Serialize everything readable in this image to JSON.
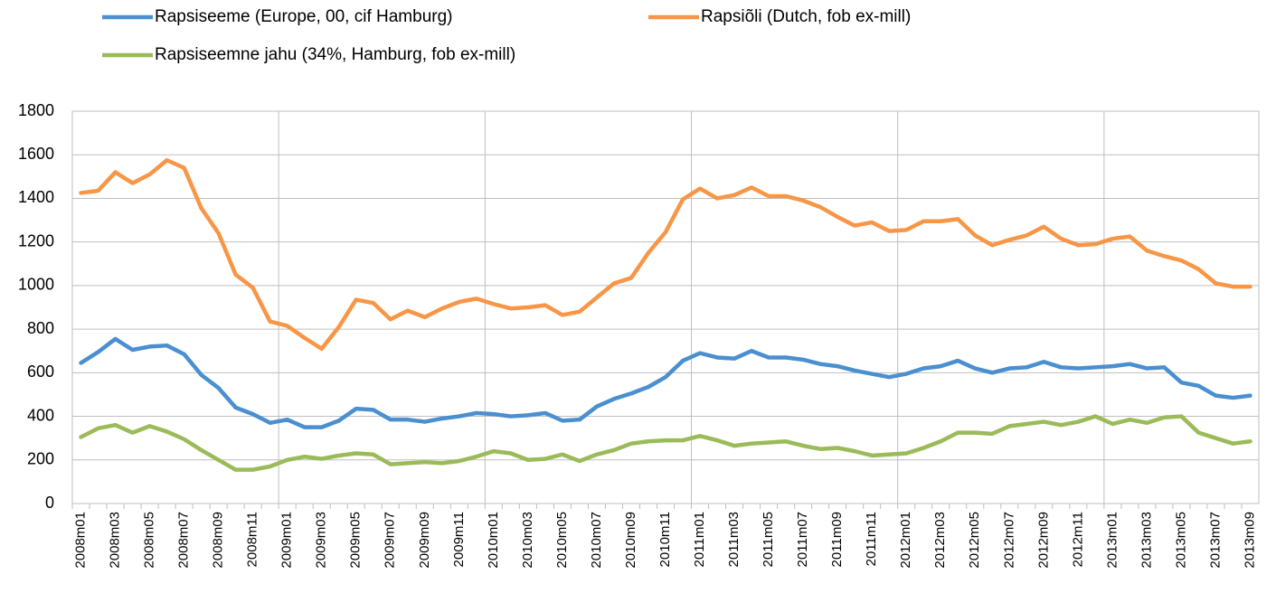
{
  "chart_data": {
    "type": "line",
    "categories": [
      "2008m01",
      null,
      "2008m03",
      null,
      "2008m05",
      null,
      "2008m07",
      null,
      "2008m09",
      null,
      "2008m11",
      null,
      "2009m01",
      null,
      "2009m03",
      null,
      "2009m05",
      null,
      "2009m07",
      null,
      "2009m09",
      null,
      "2009m11",
      null,
      "2010m01",
      null,
      "2010m03",
      null,
      "2010m05",
      null,
      "2010m07",
      null,
      "2010m09",
      null,
      "2010m11",
      null,
      "2011m01",
      null,
      "2011m03",
      null,
      "2011m05",
      null,
      "2011m07",
      null,
      "2011m09",
      null,
      "2011m11",
      null,
      "2012m01",
      null,
      "2012m03",
      null,
      "2012m05",
      null,
      "2012m07",
      null,
      "2012m09",
      null,
      "2012m11",
      null,
      "2013m01",
      null,
      "2013m03",
      null,
      "2013m05",
      null,
      "2013m07",
      null,
      "2013m09"
    ],
    "series": [
      {
        "name": "Rapsiseeme (Europe, 00, cif Hamburg)",
        "color": "#4a8fd0",
        "values": [
          645,
          695,
          755,
          705,
          720,
          725,
          685,
          590,
          530,
          440,
          410,
          370,
          385,
          350,
          350,
          380,
          435,
          430,
          385,
          385,
          375,
          390,
          400,
          415,
          410,
          400,
          405,
          415,
          380,
          385,
          445,
          480,
          505,
          535,
          580,
          655,
          690,
          670,
          665,
          700,
          670,
          670,
          660,
          640,
          630,
          610,
          595,
          580,
          595,
          620,
          630,
          655,
          620,
          600,
          620,
          625,
          650,
          625,
          620,
          625,
          630,
          640,
          620,
          625,
          555,
          540,
          495,
          485,
          495
        ]
      },
      {
        "name": "Rapsiõli (Dutch, fob ex-mill)",
        "color": "#f79646",
        "values": [
          1425,
          1435,
          1520,
          1470,
          1510,
          1575,
          1540,
          1355,
          1240,
          1050,
          990,
          835,
          815,
          760,
          710,
          810,
          935,
          920,
          845,
          885,
          855,
          895,
          925,
          940,
          915,
          895,
          900,
          910,
          865,
          880,
          945,
          1010,
          1035,
          1150,
          1245,
          1395,
          1445,
          1400,
          1415,
          1450,
          1410,
          1410,
          1390,
          1360,
          1315,
          1275,
          1290,
          1250,
          1255,
          1295,
          1295,
          1305,
          1230,
          1185,
          1210,
          1230,
          1270,
          1215,
          1185,
          1190,
          1215,
          1225,
          1160,
          1135,
          1115,
          1075,
          1010,
          995,
          995
        ]
      },
      {
        "name": "Rapsiseemne jahu (34%, Hamburg, fob ex-mill)",
        "color": "#9bbb59",
        "values": [
          305,
          345,
          360,
          325,
          355,
          330,
          295,
          245,
          200,
          155,
          155,
          170,
          200,
          215,
          205,
          220,
          230,
          225,
          180,
          185,
          190,
          185,
          195,
          215,
          240,
          230,
          200,
          205,
          225,
          195,
          225,
          245,
          275,
          285,
          290,
          290,
          310,
          290,
          265,
          275,
          280,
          285,
          265,
          250,
          255,
          240,
          220,
          225,
          230,
          255,
          285,
          325,
          325,
          320,
          355,
          365,
          375,
          360,
          375,
          400,
          365,
          385,
          370,
          395,
          400,
          325,
          300,
          275,
          285
        ]
      }
    ],
    "ylim": [
      0,
      1800
    ],
    "yticks": [
      0,
      200,
      400,
      600,
      800,
      1000,
      1200,
      1400,
      1600,
      1800
    ],
    "grid": true
  }
}
